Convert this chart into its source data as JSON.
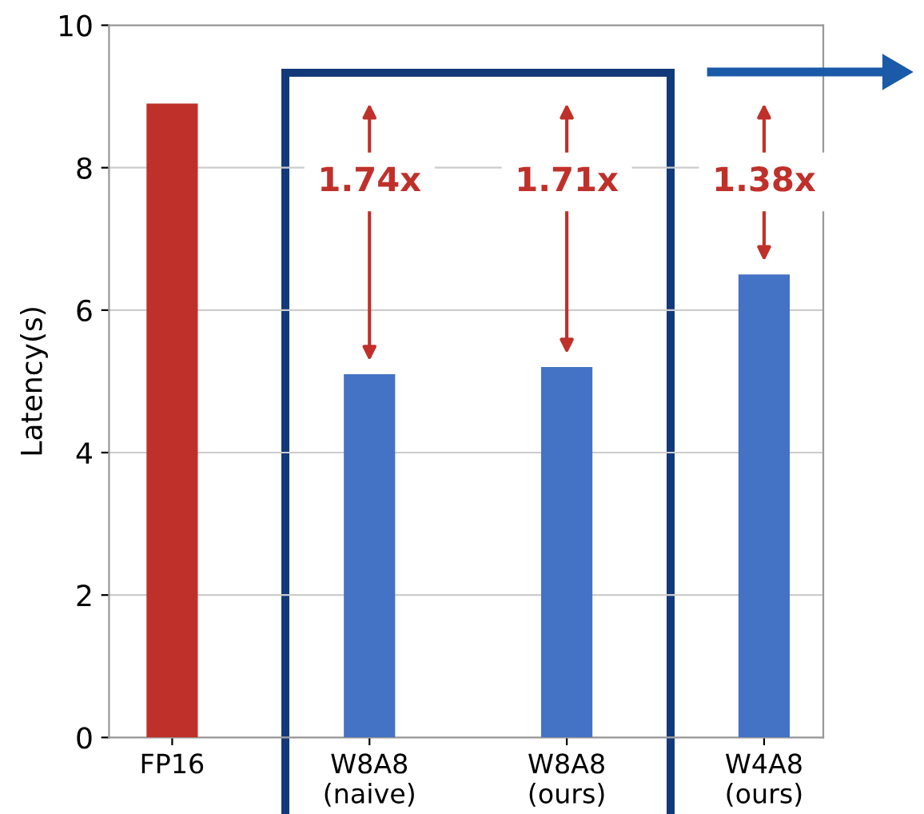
{
  "chart_data": {
    "type": "bar",
    "categories": [
      "FP16",
      "W8A8\n(naive)",
      "W8A8\n(ours)",
      "W4A8\n(ours)"
    ],
    "values": [
      8.9,
      5.1,
      5.2,
      6.5
    ],
    "colors": [
      "#c0302a",
      "#4472c4",
      "#4472c4",
      "#4472c4"
    ],
    "ylabel": "Latency(s)",
    "ylim": [
      0,
      10
    ],
    "yticks": [
      0,
      2,
      4,
      6,
      8,
      10
    ],
    "grid": "y",
    "annotations": [
      "1.74x",
      "1.71x",
      "1.38x"
    ]
  }
}
